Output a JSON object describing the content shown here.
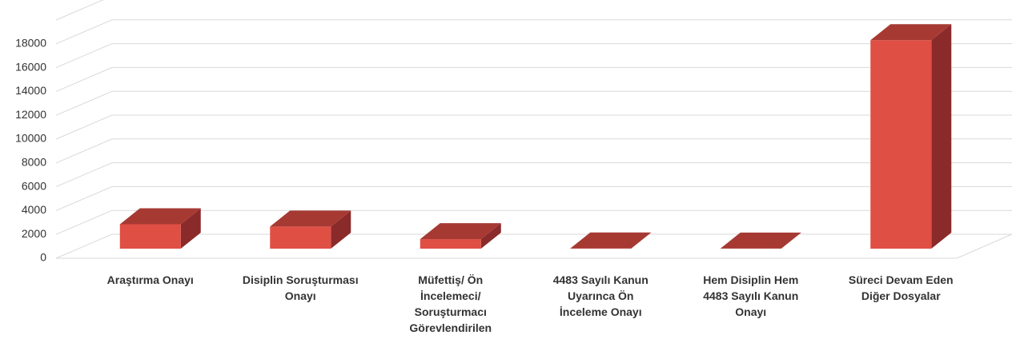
{
  "chart_data": {
    "type": "bar3d",
    "categories": [
      "Araştırma Onayı",
      "Disiplin Soruşturması\nOnayı",
      "Müfettiş/ Ön\nİncelemeci/\nSoruşturmacı\nGörevlendirilen",
      "4483 Sayılı Kanun\nUyarınca Ön\nİnceleme Onayı",
      "Hem Disiplin Hem\n4483 Sayılı Kanun\nOnayı",
      "Süreci Devam Eden\nDiğer Dosyalar"
    ],
    "values": [
      2050,
      1850,
      800,
      20,
      10,
      17500
    ],
    "color": "#e04f44",
    "ylim": [
      0,
      20000
    ],
    "yticks": [
      0,
      2000,
      4000,
      6000,
      8000,
      10000,
      12000,
      14000,
      16000,
      18000
    ],
    "grid": true
  }
}
